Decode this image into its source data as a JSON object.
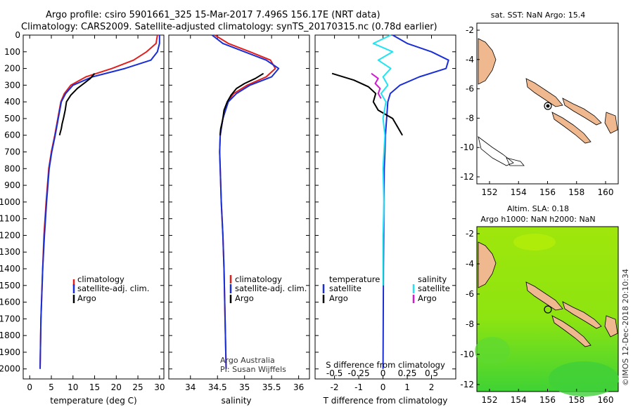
{
  "header": {
    "line1": "Argo profile: csiro 5901661_325 15-Mar-2017 7.496S 156.17E (NRT data)",
    "line2": "Climatology: CARS2009. Satellite-adjusted climatology: synTS_20170315.nc (0.78d earlier)"
  },
  "colors": {
    "climatology": "#e0201e",
    "satellite": "#1a2ed6",
    "argo": "#000000",
    "sat_salinity": "#22e3f0",
    "argo_salinity": "#d21ad2",
    "land": "#efb88e"
  },
  "chart_data": [
    {
      "type": "line",
      "name": "temperature",
      "xlabel": "temperature (deg C)",
      "ylabel": "",
      "xlim": [
        -1.5,
        31
      ],
      "ylim": [
        2060,
        0
      ],
      "xticks": [
        0,
        5,
        10,
        15,
        20,
        25,
        30
      ],
      "yticks": [
        0,
        100,
        200,
        300,
        400,
        500,
        600,
        700,
        800,
        900,
        1000,
        1100,
        1200,
        1300,
        1400,
        1500,
        1600,
        1700,
        1800,
        1900,
        2000
      ],
      "series": [
        {
          "name": "climatology",
          "x": [
            29.5,
            29.2,
            27.0,
            24.0,
            19.0,
            13.0,
            9.5,
            8.0,
            7.2,
            6.5,
            5.8,
            5.0,
            4.4,
            3.8,
            3.3,
            3.0,
            2.6,
            2.4
          ],
          "y": [
            0,
            50,
            100,
            150,
            200,
            250,
            300,
            350,
            400,
            500,
            600,
            700,
            800,
            1000,
            1200,
            1400,
            1700,
            2000
          ]
        },
        {
          "name": "satellite-adj. clim.",
          "x": [
            30.0,
            30.0,
            29.5,
            28.0,
            22.0,
            14.5,
            10.0,
            8.3,
            7.3,
            6.6,
            5.9,
            5.1,
            4.5,
            3.9,
            3.4,
            3.0,
            2.6,
            2.4
          ],
          "y": [
            0,
            50,
            100,
            150,
            200,
            250,
            300,
            350,
            400,
            500,
            600,
            700,
            800,
            1000,
            1200,
            1400,
            1700,
            2000
          ]
        },
        {
          "name": "Argo",
          "x": [
            15.0,
            14.0,
            12.5,
            11.0,
            9.5,
            8.5,
            8.2,
            7.8,
            7.5,
            7.3,
            7.0,
            6.9
          ],
          "y": [
            230,
            260,
            290,
            320,
            360,
            400,
            450,
            500,
            530,
            560,
            590,
            600
          ]
        }
      ],
      "legend": [
        "climatology",
        "satellite-adj. clim.",
        "Argo"
      ]
    },
    {
      "type": "line",
      "name": "salinity",
      "xlabel": "salinity",
      "xlim": [
        33.6,
        36.2
      ],
      "ylim": [
        2060,
        0
      ],
      "xticks": [
        34,
        34.5,
        35,
        35.5,
        36
      ],
      "series": [
        {
          "name": "climatology",
          "x": [
            34.45,
            34.7,
            35.1,
            35.48,
            35.57,
            35.4,
            35.05,
            34.8,
            34.68,
            34.6,
            34.55,
            34.54,
            34.55,
            34.57,
            34.6,
            34.62,
            34.64,
            34.66
          ],
          "y": [
            0,
            50,
            100,
            150,
            200,
            250,
            300,
            350,
            400,
            500,
            600,
            700,
            800,
            1000,
            1200,
            1400,
            1700,
            2000
          ]
        },
        {
          "name": "satellite-adj. clim.",
          "x": [
            34.4,
            34.6,
            35.0,
            35.4,
            35.63,
            35.5,
            35.1,
            34.85,
            34.7,
            34.6,
            34.55,
            34.54,
            34.55,
            34.57,
            34.6,
            34.62,
            34.64,
            34.66
          ],
          "y": [
            0,
            50,
            100,
            150,
            200,
            250,
            300,
            350,
            400,
            500,
            600,
            700,
            800,
            1000,
            1200,
            1400,
            1700,
            2000
          ]
        },
        {
          "name": "Argo",
          "x": [
            35.35,
            35.2,
            35.0,
            34.85,
            34.75,
            34.68,
            34.62,
            34.6,
            34.58,
            34.56,
            34.55,
            34.55
          ],
          "y": [
            230,
            260,
            290,
            320,
            360,
            400,
            450,
            500,
            530,
            560,
            590,
            600
          ]
        }
      ],
      "legend": [
        "climatology",
        "satellite-adj. clim.",
        "Argo"
      ],
      "credit1": "Argo Australia",
      "credit2": "PI: Susan Wijffels"
    },
    {
      "type": "line",
      "name": "difference",
      "xlabel": "T difference from climatology",
      "xlabel_top": "S difference from climatology",
      "xlim": [
        -2.8,
        3.0
      ],
      "ylim": [
        2060,
        0
      ],
      "xticks": [
        -2,
        -1,
        0,
        1,
        2
      ],
      "top_ticks": [
        -0.5,
        -0.25,
        0,
        0.25,
        0.5
      ],
      "series": [
        {
          "name": "temperature satellite",
          "x": [
            0.4,
            1.0,
            2.0,
            2.7,
            2.6,
            1.5,
            0.7,
            0.3,
            0.2,
            0.15,
            0.1,
            0.08,
            0.05,
            0.04,
            0.03,
            0.02,
            0.01,
            0.0
          ],
          "y": [
            0,
            50,
            100,
            150,
            200,
            250,
            300,
            350,
            400,
            500,
            600,
            700,
            800,
            1000,
            1200,
            1400,
            1700,
            2000
          ]
        },
        {
          "name": "temperature Argo",
          "x": [
            -2.1,
            -1.2,
            -0.6,
            -0.3,
            -0.4,
            -0.2,
            0.4,
            0.6,
            0.8
          ],
          "y": [
            230,
            270,
            310,
            350,
            400,
            450,
            500,
            550,
            600
          ]
        },
        {
          "name": "salinity satellite",
          "x": [
            0.08,
            -0.1,
            0.1,
            -0.05,
            0.08,
            0.0,
            0.05,
            -0.02,
            0.03,
            0.0,
            0.02,
            0.0,
            0.01,
            0.0,
            0.0,
            0.0
          ],
          "y": [
            0,
            50,
            100,
            150,
            200,
            250,
            300,
            350,
            400,
            500,
            600,
            800,
            1000,
            1200,
            1400,
            1500
          ]
        },
        {
          "name": "salinity Argo",
          "x": [
            -0.12,
            -0.05,
            -0.08,
            -0.03,
            -0.05,
            -0.02
          ],
          "y": [
            230,
            260,
            290,
            320,
            350,
            380
          ]
        }
      ],
      "legend_left_title": "temperature",
      "legend_right_title": "salinity",
      "legend_items": [
        "satellite",
        "Argo"
      ]
    }
  ],
  "maps": {
    "top": {
      "title": "sat. SST: NaN Argo: 15.4",
      "xticks": [
        "152",
        "154",
        "156",
        "158",
        "160"
      ],
      "yticks": [
        "-2",
        "-4",
        "-6",
        "-8",
        "-10",
        "-12"
      ]
    },
    "bottom": {
      "title1": "Altim. SLA: 0.18",
      "title2": "Argo h1000: NaN h2000: NaN",
      "xticks": [
        "152",
        "154",
        "156",
        "158",
        "160"
      ],
      "yticks": [
        "-2",
        "-4",
        "-6",
        "-8",
        "-10",
        "-12"
      ]
    }
  },
  "stamp": "©IMOS 12-Dec-2018 20:10:34"
}
